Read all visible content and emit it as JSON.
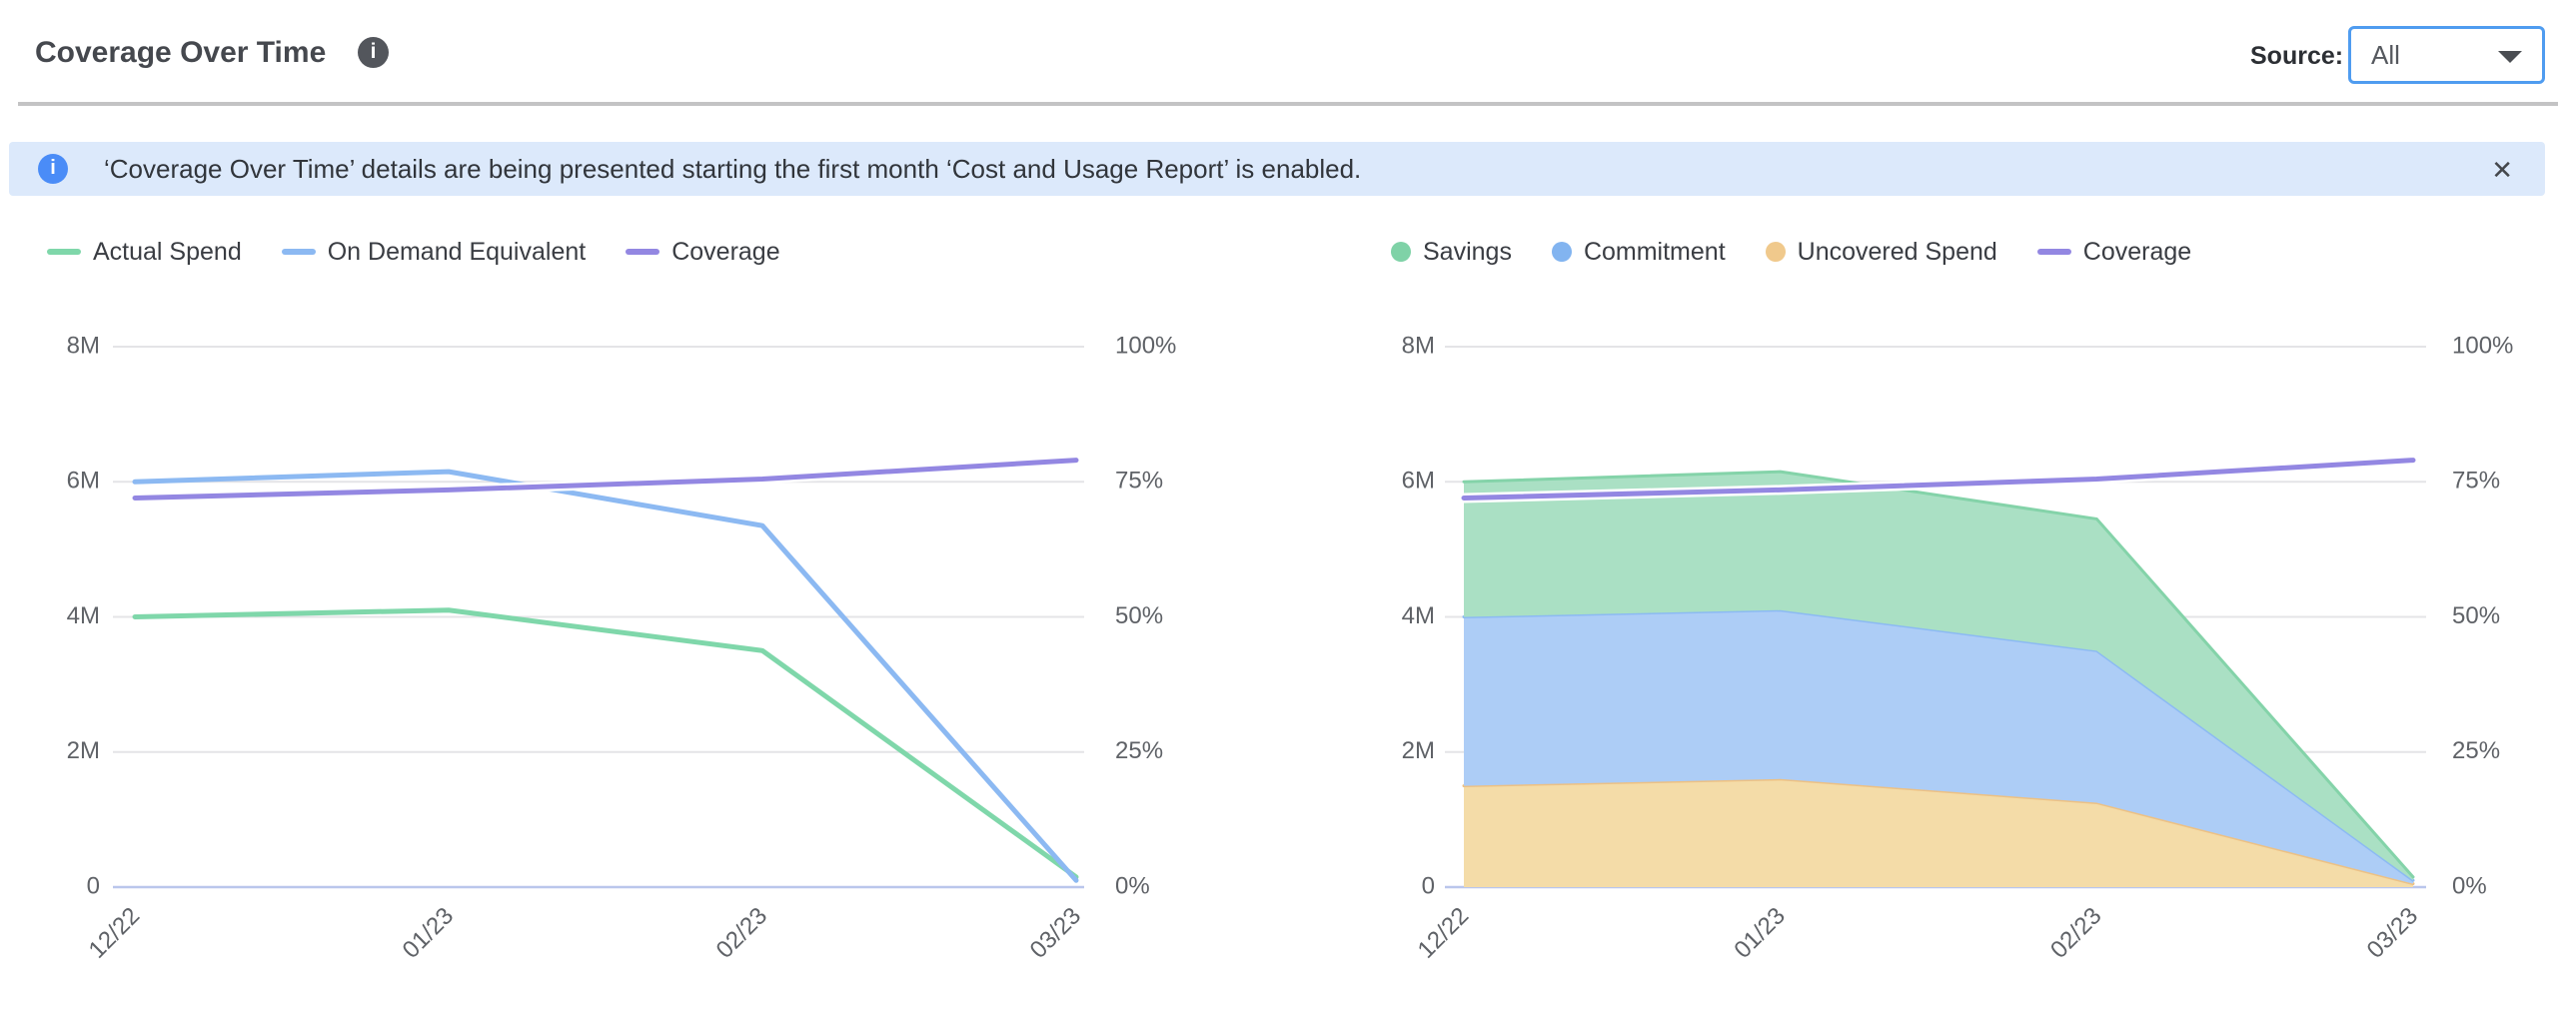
{
  "header": {
    "title": "Coverage Over Time",
    "title_info_icon": "info-icon",
    "source_label": "Source:",
    "source_value": "All"
  },
  "banner": {
    "icon": "info-icon",
    "text": "‘Coverage Over Time’ details are being presented starting the first month ‘Cost and Usage Report’ is enabled.",
    "close_label": "✕"
  },
  "colors": {
    "accent_blue": "#4f9cf0",
    "banner_bg": "#dce9fb",
    "banner_icon_blue": "#4a8cf7",
    "grid_line": "#e4e4e7",
    "zero_line": "#bac6ec",
    "tick_text": "#5f6267"
  },
  "chart_data": [
    {
      "type": "line",
      "position": "left",
      "x_categories": [
        "12/22",
        "01/23",
        "02/23",
        "03/23"
      ],
      "left_axis": {
        "ticks": [
          {
            "label": "8M",
            "value": 8000000
          },
          {
            "label": "6M",
            "value": 6000000
          },
          {
            "label": "4M",
            "value": 4000000
          },
          {
            "label": "2M",
            "value": 2000000
          },
          {
            "label": "0",
            "value": 0
          }
        ],
        "min": 0,
        "max": 8000000
      },
      "right_axis": {
        "ticks": [
          {
            "label": "100%",
            "value": 100
          },
          {
            "label": "75%",
            "value": 75
          },
          {
            "label": "50%",
            "value": 50
          },
          {
            "label": "25%",
            "value": 25
          },
          {
            "label": "0%",
            "value": 0
          }
        ],
        "min": 0,
        "max": 100
      },
      "grid": true,
      "legend_position": "top-left",
      "series": [
        {
          "name": "Actual Spend",
          "marker": "line",
          "axis": "left",
          "color": "#7fd7aa",
          "values": [
            4000000,
            4100000,
            3500000,
            150000
          ]
        },
        {
          "name": "On Demand Equivalent",
          "marker": "line",
          "axis": "left",
          "color": "#8cb9f2",
          "values": [
            6000000,
            6150000,
            5350000,
            100000
          ]
        },
        {
          "name": "Coverage",
          "marker": "line",
          "axis": "right",
          "color": "#9387e2",
          "halo": true,
          "values": [
            72,
            73.5,
            75.5,
            79
          ]
        }
      ]
    },
    {
      "type": "area",
      "position": "right",
      "stacked": true,
      "stack_order": [
        "Uncovered Spend",
        "Commitment",
        "Savings"
      ],
      "x_categories": [
        "12/22",
        "01/23",
        "02/23",
        "03/23"
      ],
      "left_axis": {
        "ticks": [
          {
            "label": "8M",
            "value": 8000000
          },
          {
            "label": "6M",
            "value": 6000000
          },
          {
            "label": "4M",
            "value": 4000000
          },
          {
            "label": "2M",
            "value": 2000000
          },
          {
            "label": "0",
            "value": 0
          }
        ],
        "min": 0,
        "max": 8000000
      },
      "right_axis": {
        "ticks": [
          {
            "label": "100%",
            "value": 100
          },
          {
            "label": "75%",
            "value": 75
          },
          {
            "label": "50%",
            "value": 50
          },
          {
            "label": "25%",
            "value": 25
          },
          {
            "label": "0%",
            "value": 0
          }
        ],
        "min": 0,
        "max": 100
      },
      "grid": true,
      "legend_position": "top-left",
      "series": [
        {
          "name": "Savings",
          "marker": "dot",
          "axis": "left",
          "color": "#7fd2a7",
          "fill": "#aae0c4",
          "edge": "#84d3a9",
          "values": [
            2000000,
            2050000,
            1950000,
            50000
          ]
        },
        {
          "name": "Commitment",
          "marker": "dot",
          "axis": "left",
          "color": "#82b4f0",
          "fill": "#adcdf6",
          "edge": "#8cbaf3",
          "values": [
            2500000,
            2500000,
            2250000,
            50000
          ]
        },
        {
          "name": "Uncovered Spend",
          "marker": "dot",
          "axis": "left",
          "color": "#f0c98c",
          "fill": "#f4dca8",
          "edge": "#edc184",
          "values": [
            1500000,
            1600000,
            1250000,
            50000
          ]
        },
        {
          "name": "Coverage",
          "marker": "line",
          "axis": "right",
          "color": "#9387e2",
          "halo": true,
          "values": [
            72,
            73.5,
            75.5,
            79
          ]
        }
      ]
    }
  ]
}
